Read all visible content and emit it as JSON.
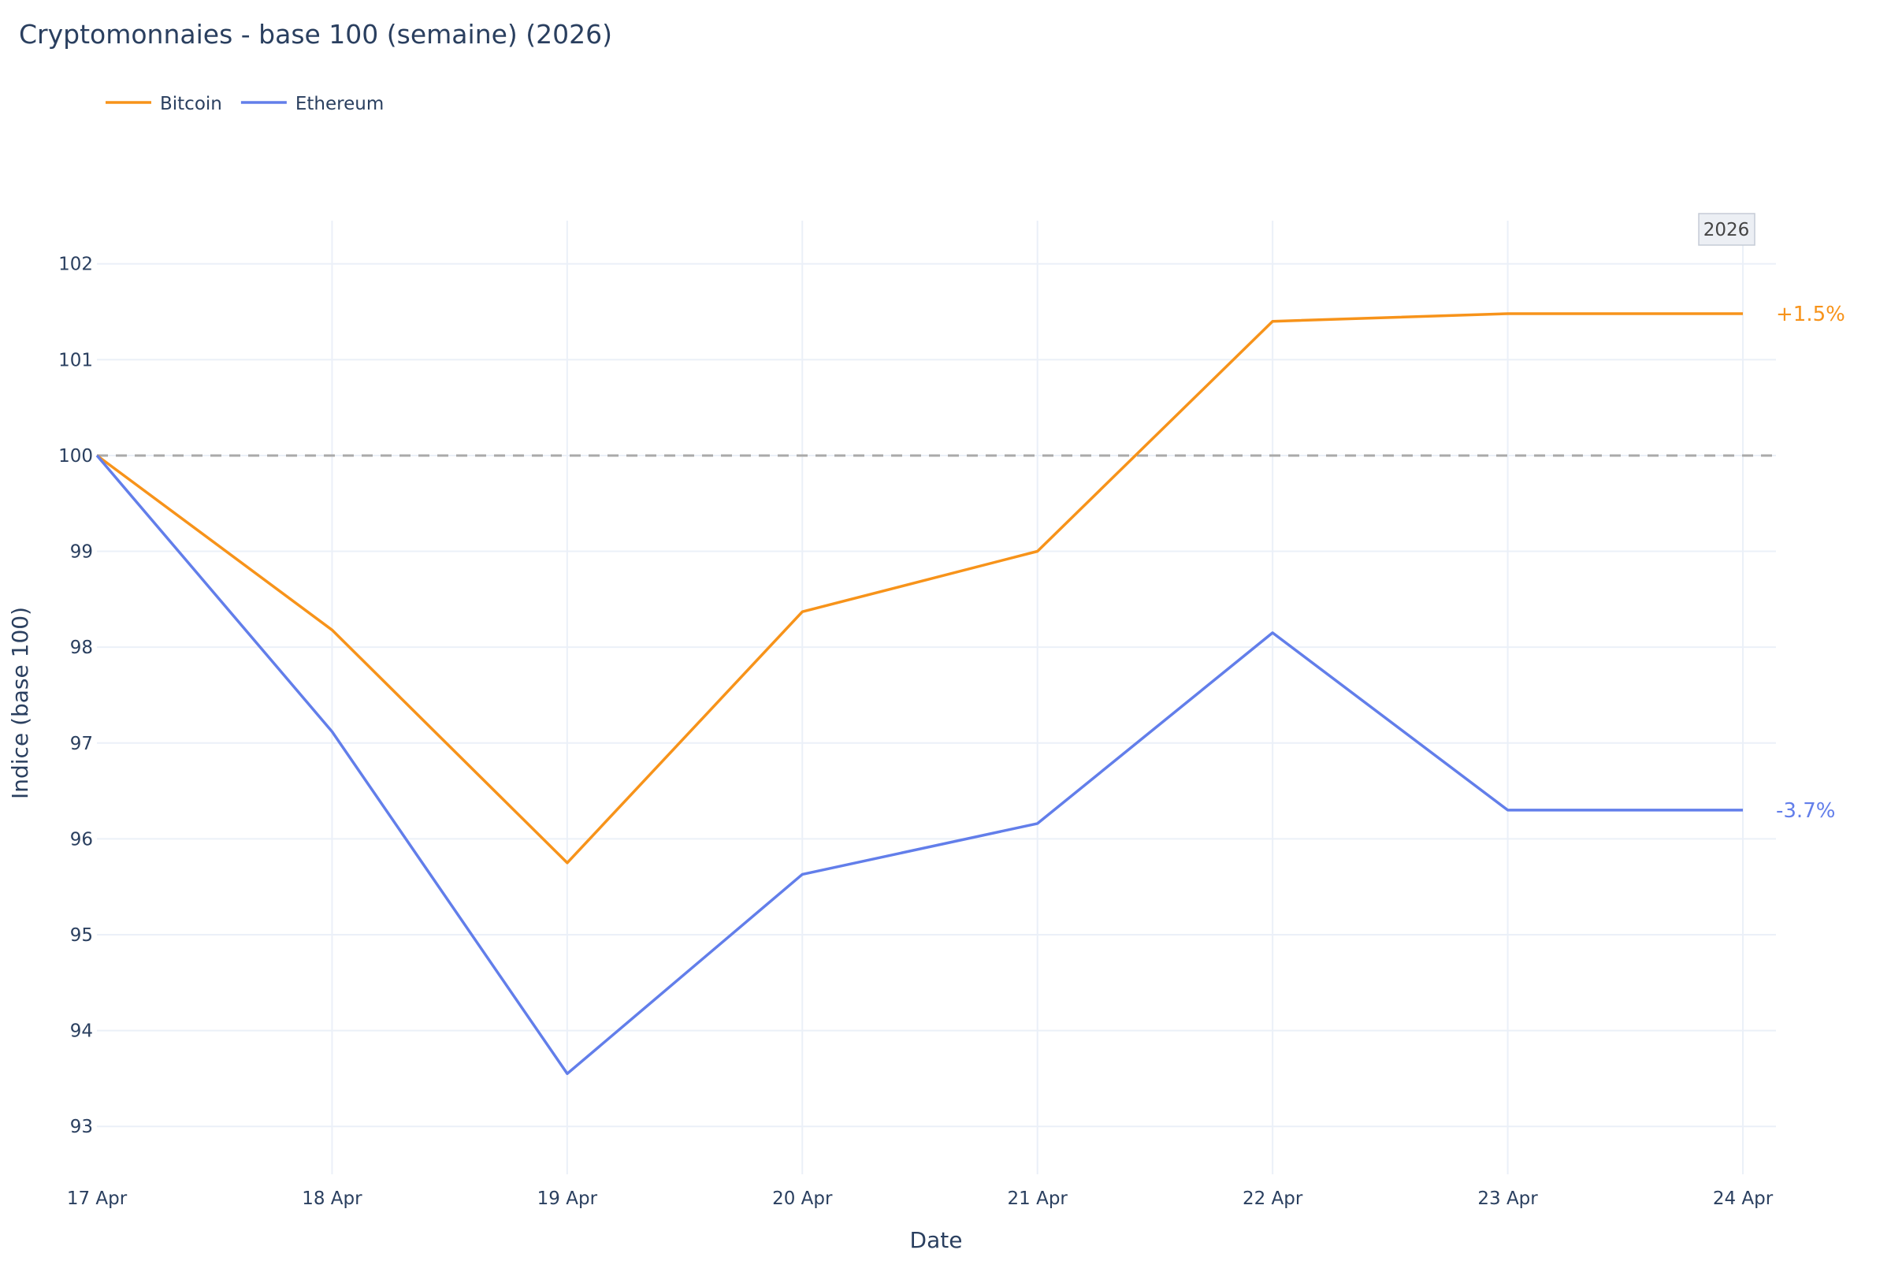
{
  "chart_data": {
    "type": "line",
    "title": "Cryptomonnaies - base 100 (semaine) (2026)",
    "xlabel": "Date",
    "ylabel": "Indice (base 100)",
    "x": [
      "17 Apr",
      "18 Apr",
      "19 Apr",
      "20 Apr",
      "21 Apr",
      "22 Apr",
      "23 Apr",
      "24 Apr"
    ],
    "ylim": [
      92.5,
      102.45
    ],
    "yticks": [
      93,
      94,
      95,
      96,
      97,
      98,
      99,
      100,
      101,
      102
    ],
    "grid": true,
    "legend_position": "top-left",
    "reference_line": {
      "y": 100,
      "style": "dashed",
      "color": "#aaaaaa"
    },
    "badge": "2026",
    "series": [
      {
        "name": "Bitcoin",
        "color": "#f7931a",
        "values": [
          100,
          98.18,
          95.75,
          98.37,
          99.0,
          101.4,
          101.48,
          101.48
        ],
        "end_label": "+1.5%"
      },
      {
        "name": "Ethereum",
        "color": "#627eea",
        "values": [
          100,
          97.12,
          93.55,
          95.63,
          96.16,
          98.15,
          96.3,
          96.3
        ],
        "end_label": "-3.7%"
      }
    ]
  }
}
